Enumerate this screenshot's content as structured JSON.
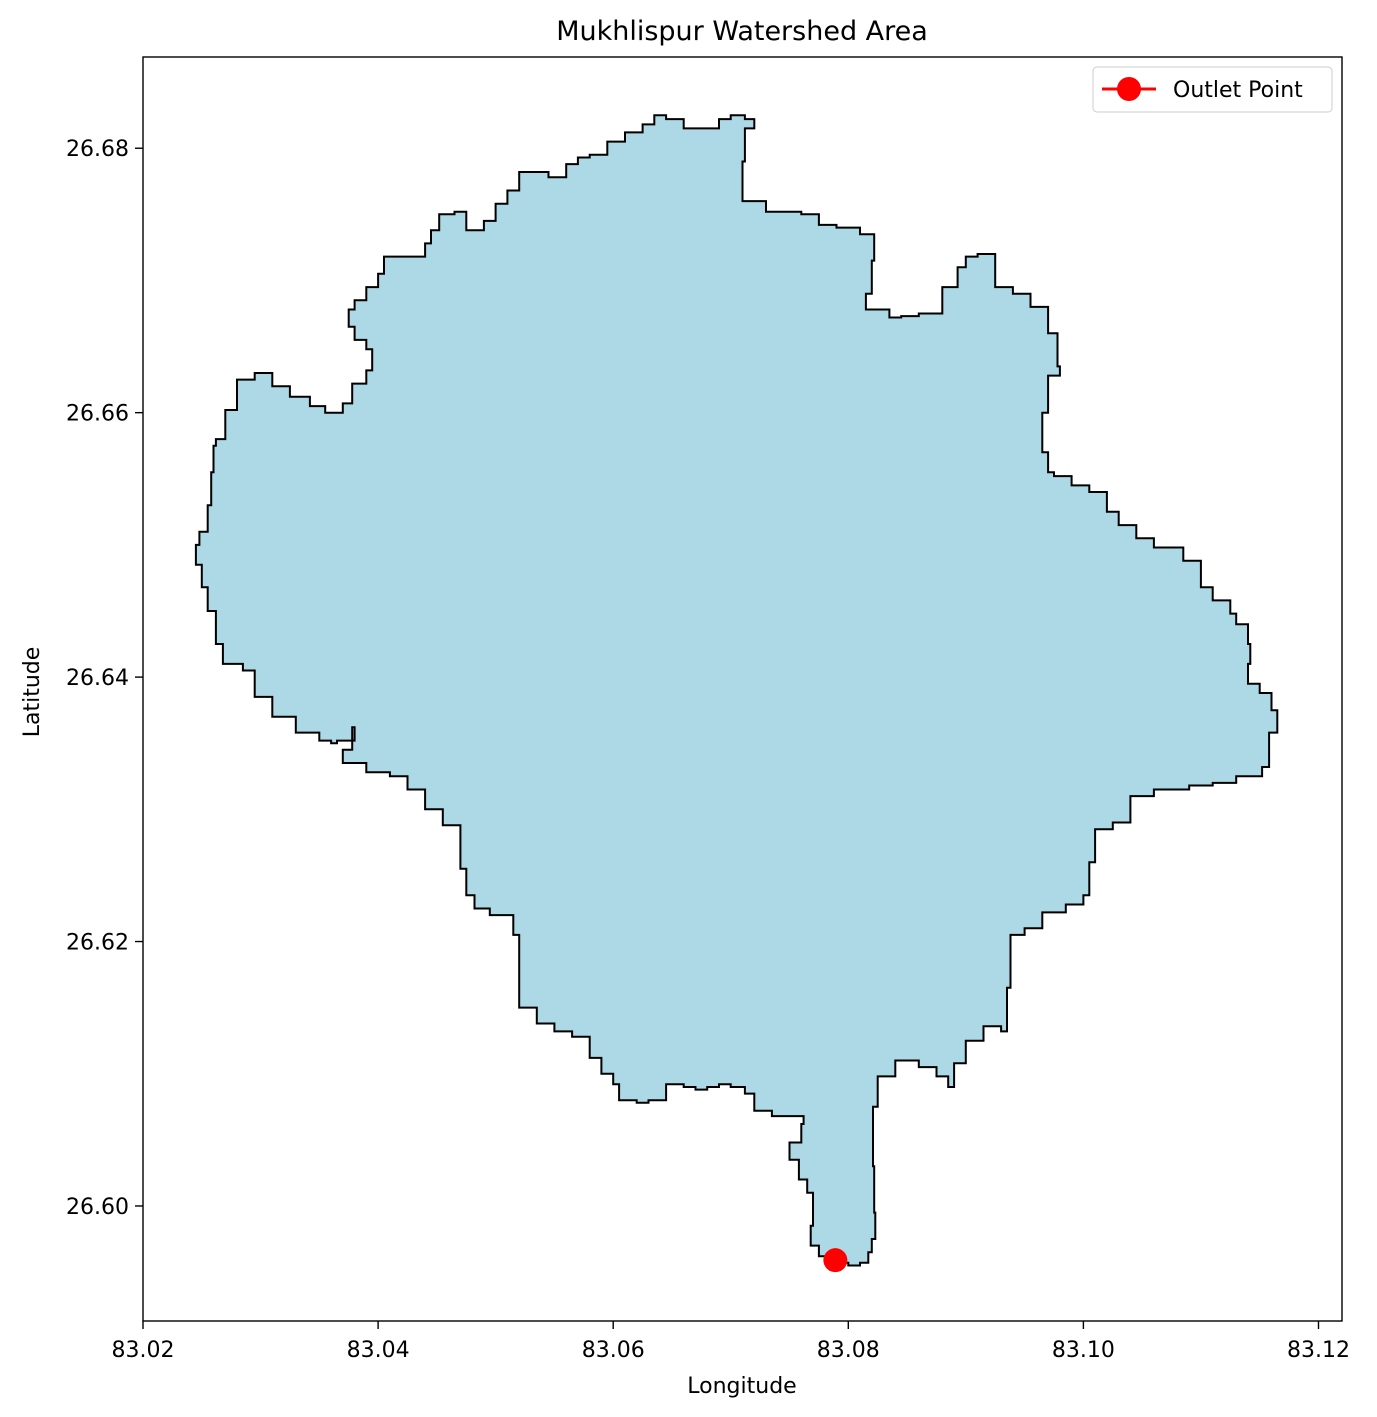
{
  "chart_data": {
    "type": "map",
    "title": "Mukhlispur Watershed Area",
    "xlabel": "Longitude",
    "ylabel": "Latitude",
    "xlim": [
      83.02,
      83.122
    ],
    "ylim": [
      26.5913,
      26.6869
    ],
    "x_ticks": [
      "83.02",
      "83.04",
      "83.06",
      "83.08",
      "83.10",
      "83.12"
    ],
    "x_tick_values": [
      83.02,
      83.04,
      83.06,
      83.08,
      83.1,
      83.12
    ],
    "y_ticks": [
      "26.60",
      "26.62",
      "26.64",
      "26.66",
      "26.68"
    ],
    "y_tick_values": [
      26.6,
      26.62,
      26.64,
      26.66,
      26.68
    ],
    "grid": false,
    "legend_position": "top-right",
    "watershed": {
      "fill_color": "#add8e6",
      "edge_color": "#000000",
      "boundary": [
        [
          83.0787,
          26.5957
        ],
        [
          83.0793,
          26.5957
        ],
        [
          83.08,
          26.5955
        ],
        [
          83.081,
          26.5957
        ],
        [
          83.0817,
          26.5965
        ],
        [
          83.082,
          26.5975
        ],
        [
          83.0823,
          26.5995
        ],
        [
          83.0822,
          26.603
        ],
        [
          83.0821,
          26.6075
        ],
        [
          83.0825,
          26.6098
        ],
        [
          83.084,
          26.611
        ],
        [
          83.086,
          26.6105
        ],
        [
          83.0875,
          26.6098
        ],
        [
          83.0885,
          26.609
        ],
        [
          83.089,
          26.6108
        ],
        [
          83.09,
          26.6125
        ],
        [
          83.0915,
          26.6136
        ],
        [
          83.093,
          26.6132
        ],
        [
          83.0935,
          26.6145
        ],
        [
          83.0935,
          26.6165
        ],
        [
          83.0938,
          26.6205
        ],
        [
          83.095,
          26.621
        ],
        [
          83.0965,
          26.6222
        ],
        [
          83.0985,
          26.6228
        ],
        [
          83.1,
          26.6235
        ],
        [
          83.1005,
          26.626
        ],
        [
          83.101,
          26.6285
        ],
        [
          83.1025,
          26.629
        ],
        [
          83.104,
          26.631
        ],
        [
          83.106,
          26.6315
        ],
        [
          83.109,
          26.6318
        ],
        [
          83.111,
          26.632
        ],
        [
          83.113,
          26.6325
        ],
        [
          83.1152,
          26.6332
        ],
        [
          83.1158,
          26.6345
        ],
        [
          83.1158,
          26.6358
        ],
        [
          83.1165,
          26.6375
        ],
        [
          83.116,
          26.6388
        ],
        [
          83.115,
          26.6395
        ],
        [
          83.114,
          26.641
        ],
        [
          83.1142,
          26.6425
        ],
        [
          83.114,
          26.644
        ],
        [
          83.113,
          26.6448
        ],
        [
          83.1125,
          26.6458
        ],
        [
          83.111,
          26.6468
        ],
        [
          83.11,
          26.6488
        ],
        [
          83.1085,
          26.6498
        ],
        [
          83.106,
          26.6505
        ],
        [
          83.1045,
          26.6515
        ],
        [
          83.103,
          26.6525
        ],
        [
          83.102,
          26.654
        ],
        [
          83.1005,
          26.6545
        ],
        [
          83.099,
          26.6552
        ],
        [
          83.0975,
          26.6555
        ],
        [
          83.097,
          26.657
        ],
        [
          83.0965,
          26.66
        ],
        [
          83.097,
          26.6628
        ],
        [
          83.098,
          26.6635
        ],
        [
          83.0978,
          26.666
        ],
        [
          83.097,
          26.668
        ],
        [
          83.0955,
          26.669
        ],
        [
          83.094,
          26.6695
        ],
        [
          83.0925,
          26.672
        ],
        [
          83.091,
          26.6718
        ],
        [
          83.09,
          26.671
        ],
        [
          83.0893,
          26.6695
        ],
        [
          83.088,
          26.6675
        ],
        [
          83.086,
          26.6673
        ],
        [
          83.0845,
          26.6672
        ],
        [
          83.0835,
          26.6678
        ],
        [
          83.0815,
          26.6678
        ],
        [
          83.0815,
          26.669
        ],
        [
          83.082,
          26.67
        ],
        [
          83.082,
          26.6715
        ],
        [
          83.0822,
          26.6735
        ],
        [
          83.081,
          26.674
        ],
        [
          83.079,
          26.6742
        ],
        [
          83.0775,
          26.675
        ],
        [
          83.076,
          26.6752
        ],
        [
          83.0745,
          26.6752
        ],
        [
          83.073,
          26.676
        ],
        [
          83.071,
          26.677
        ],
        [
          83.071,
          26.679
        ],
        [
          83.0712,
          26.68
        ],
        [
          83.0712,
          26.6815
        ],
        [
          83.072,
          26.6822
        ],
        [
          83.0712,
          26.6825
        ],
        [
          83.07,
          26.6822
        ],
        [
          83.069,
          26.6815
        ],
        [
          83.0675,
          26.6815
        ],
        [
          83.066,
          26.6822
        ],
        [
          83.0645,
          26.6825
        ],
        [
          83.0635,
          26.6818
        ],
        [
          83.0625,
          26.6812
        ],
        [
          83.061,
          26.6805
        ],
        [
          83.0595,
          26.6795
        ],
        [
          83.058,
          26.6793
        ],
        [
          83.057,
          26.6788
        ],
        [
          83.056,
          26.6778
        ],
        [
          83.0545,
          26.6782
        ],
        [
          83.053,
          26.6782
        ],
        [
          83.052,
          26.6768
        ],
        [
          83.051,
          26.6758
        ],
        [
          83.05,
          26.6745
        ],
        [
          83.049,
          26.6738
        ],
        [
          83.0475,
          26.6752
        ],
        [
          83.0465,
          26.675
        ],
        [
          83.0452,
          26.6738
        ],
        [
          83.0445,
          26.6728
        ],
        [
          83.044,
          26.6718
        ],
        [
          83.0425,
          26.6718
        ],
        [
          83.0415,
          26.6718
        ],
        [
          83.0405,
          26.6705
        ],
        [
          83.04,
          26.6695
        ],
        [
          83.039,
          26.6685
        ],
        [
          83.038,
          26.6678
        ],
        [
          83.0375,
          26.6665
        ],
        [
          83.038,
          26.6655
        ],
        [
          83.039,
          26.6648
        ],
        [
          83.0395,
          26.6632
        ],
        [
          83.039,
          26.6622
        ],
        [
          83.0378,
          26.6607
        ],
        [
          83.037,
          26.66
        ],
        [
          83.0355,
          26.6605
        ],
        [
          83.0342,
          26.6612
        ],
        [
          83.0325,
          26.662
        ],
        [
          83.031,
          26.663
        ],
        [
          83.0295,
          26.6625
        ],
        [
          83.028,
          26.6602
        ],
        [
          83.027,
          26.658
        ],
        [
          83.0262,
          26.6575
        ],
        [
          83.026,
          26.6555
        ],
        [
          83.0258,
          26.653
        ],
        [
          83.0255,
          26.651
        ],
        [
          83.0248,
          26.65
        ],
        [
          83.0245,
          26.6485
        ],
        [
          83.025,
          26.6468
        ],
        [
          83.0255,
          26.645
        ],
        [
          83.0262,
          26.6425
        ],
        [
          83.0268,
          26.641
        ],
        [
          83.0285,
          26.6405
        ],
        [
          83.0295,
          26.6385
        ],
        [
          83.031,
          26.637
        ],
        [
          83.033,
          26.6358
        ],
        [
          83.035,
          26.6352
        ],
        [
          83.036,
          26.635
        ],
        [
          83.0365,
          26.6352
        ],
        [
          83.038,
          26.6362
        ],
        [
          83.0378,
          26.6345
        ],
        [
          83.037,
          26.6335
        ],
        [
          83.039,
          26.6328
        ],
        [
          83.041,
          26.6325
        ],
        [
          83.0425,
          26.6315
        ],
        [
          83.044,
          26.63
        ],
        [
          83.0455,
          26.6288
        ],
        [
          83.047,
          26.6275
        ],
        [
          83.047,
          26.6255
        ],
        [
          83.0475,
          26.6235
        ],
        [
          83.0482,
          26.6225
        ],
        [
          83.0495,
          26.622
        ],
        [
          83.051,
          26.622
        ],
        [
          83.0515,
          26.6205
        ],
        [
          83.052,
          26.619
        ],
        [
          83.052,
          26.6175
        ],
        [
          83.052,
          26.615
        ],
        [
          83.0535,
          26.6138
        ],
        [
          83.055,
          26.6132
        ],
        [
          83.0565,
          26.6128
        ],
        [
          83.058,
          26.6112
        ],
        [
          83.059,
          26.61
        ],
        [
          83.06,
          26.6092
        ],
        [
          83.0605,
          26.608
        ],
        [
          83.062,
          26.6078
        ],
        [
          83.063,
          26.608
        ],
        [
          83.0645,
          26.6092
        ],
        [
          83.066,
          26.609
        ],
        [
          83.067,
          26.6088
        ],
        [
          83.068,
          26.609
        ],
        [
          83.069,
          26.6092
        ],
        [
          83.07,
          26.609
        ],
        [
          83.0712,
          26.6085
        ],
        [
          83.072,
          26.6072
        ],
        [
          83.0735,
          26.6068
        ],
        [
          83.075,
          26.6068
        ],
        [
          83.0762,
          26.6062
        ],
        [
          83.076,
          26.6048
        ],
        [
          83.075,
          26.6035
        ],
        [
          83.0758,
          26.602
        ],
        [
          83.0765,
          26.601
        ],
        [
          83.077,
          26.6
        ],
        [
          83.077,
          26.5985
        ],
        [
          83.0768,
          26.597
        ],
        [
          83.0775,
          26.5962
        ],
        [
          83.0787,
          26.5957
        ]
      ]
    },
    "outlet": {
      "label": "Outlet Point",
      "lon": 83.0789,
      "lat": 26.5959,
      "color": "#ff0000"
    }
  }
}
